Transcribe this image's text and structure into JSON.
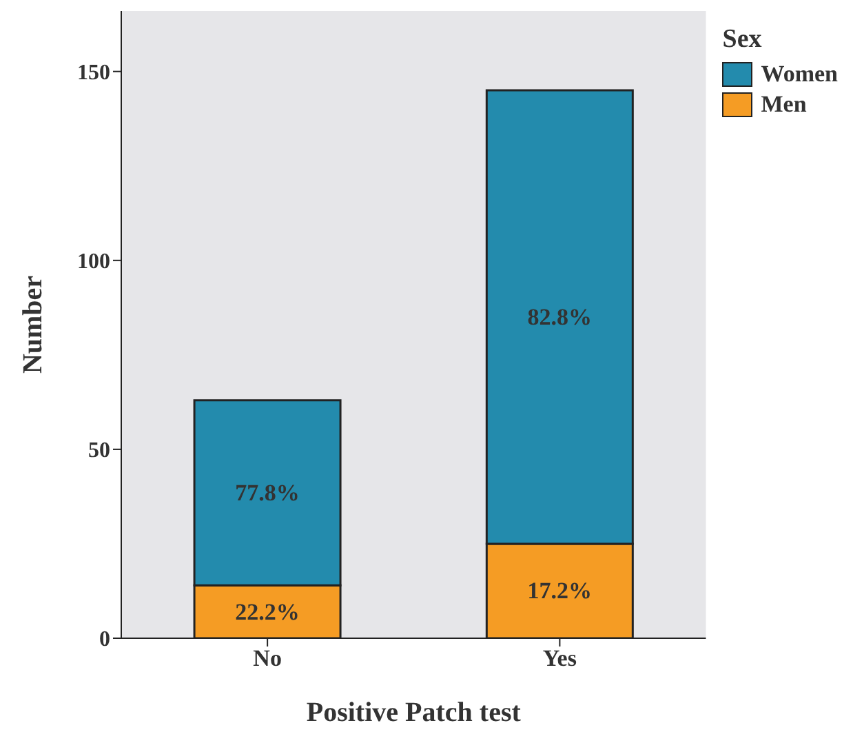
{
  "chart_data": {
    "type": "bar",
    "xlabel": "Positive Patch test",
    "ylabel": "Number",
    "legend_title": "Sex",
    "categories": [
      "No",
      "Yes"
    ],
    "stacked": true,
    "legend": "right",
    "ylim": [
      0,
      166
    ],
    "yticks": [
      0,
      50,
      100,
      150
    ],
    "series": [
      {
        "name": "Men",
        "color": "#f59c24",
        "values": [
          14,
          25
        ]
      },
      {
        "name": "Women",
        "color": "#238bad",
        "values": [
          49,
          120
        ]
      }
    ],
    "annotations": [
      "22.2%",
      "17.2%",
      "77.8%",
      "82.8%"
    ]
  }
}
